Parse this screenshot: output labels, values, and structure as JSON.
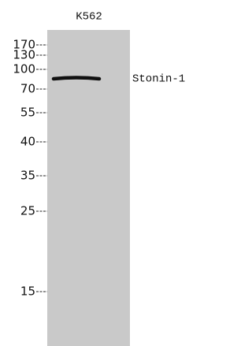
{
  "lane_label": "K562",
  "band_label": "Stonin-1",
  "markers": [
    170,
    130,
    100,
    70,
    55,
    40,
    35,
    25,
    15
  ]
}
